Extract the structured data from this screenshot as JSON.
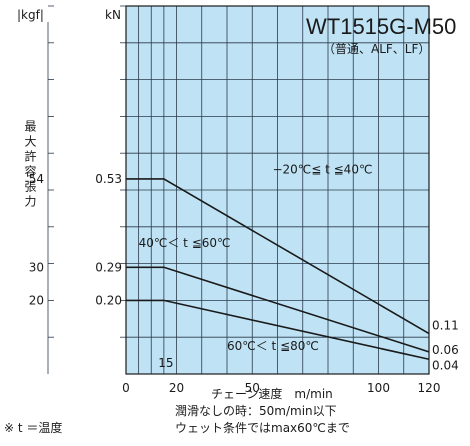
{
  "chart_data": {
    "type": "line",
    "title": "WT1515G-M50",
    "subtitle": "（普通、ALF、LF）",
    "ylabel": "最大許容張力",
    "yunit_kgf": "|kgf|",
    "yunit_kn": "kN",
    "xlabel": "チェーン速度　m/min",
    "xlim": [
      0,
      120
    ],
    "ylim": [
      0,
      1.0
    ],
    "x_ticks": [
      0,
      20,
      50,
      100,
      120
    ],
    "x_grid": [
      5,
      10,
      15,
      20,
      30,
      40,
      50,
      60,
      70,
      80,
      90,
      100,
      110,
      120
    ],
    "y_grid": [
      0.1,
      0.2,
      0.3,
      0.4,
      0.5,
      0.6,
      0.7,
      0.8,
      0.9,
      1.0
    ],
    "kgf_ticks": [
      {
        "label": "54",
        "value": 0.53
      },
      {
        "label": "30",
        "value": 0.29
      },
      {
        "label": "20",
        "value": 0.2
      }
    ],
    "x_marker": {
      "label": "15",
      "value": 15
    },
    "series": [
      {
        "name": "−20℃≦ t ≦40℃",
        "x": [
          0,
          15,
          120
        ],
        "y": [
          0.53,
          0.53,
          0.11
        ],
        "start_label": "0.53",
        "end_label": "0.11"
      },
      {
        "name": "40℃＜ t ≦60℃",
        "x": [
          0,
          15,
          120
        ],
        "y": [
          0.29,
          0.29,
          0.06
        ],
        "start_label": "0.29",
        "end_label": "0.06"
      },
      {
        "name": "60℃＜ t ≦80℃",
        "x": [
          0,
          15,
          120
        ],
        "y": [
          0.2,
          0.2,
          0.04
        ],
        "start_label": "0.20",
        "end_label": "0.04"
      }
    ],
    "notes": [
      "潤滑なしの時：50m/min以下",
      "ウェット条件ではmax60℃まで"
    ],
    "footnote": "※ t ＝温度",
    "grid": true,
    "colors": {
      "background": "#bfe3f5",
      "grid": "#2a3a4a",
      "line": "#1a1a1a"
    }
  }
}
